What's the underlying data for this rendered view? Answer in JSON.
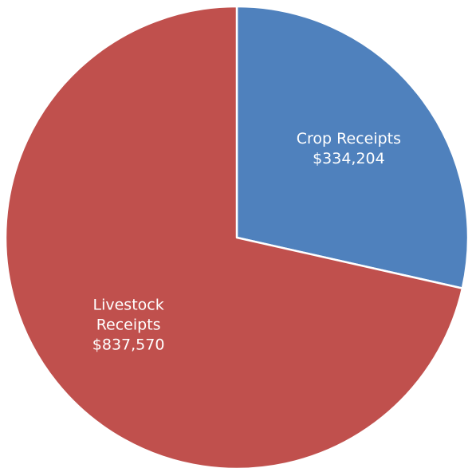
{
  "chart_data": {
    "type": "pie",
    "title": "",
    "slices": [
      {
        "label_lines": [
          "Crop Receipts",
          "$334,204"
        ],
        "value": 334204,
        "color": "#4F81BD"
      },
      {
        "label_lines": [
          "Livestock",
          "Receipts",
          "$837,570"
        ],
        "value": 837570,
        "color": "#C0504D"
      }
    ],
    "start_angle_deg": 0,
    "direction": "clockwise",
    "legend": "none"
  }
}
